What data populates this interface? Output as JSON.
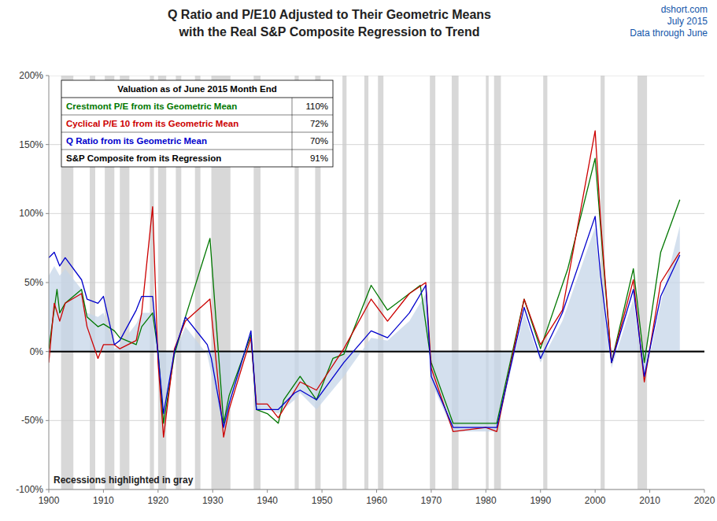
{
  "chart_data": {
    "type": "line",
    "title": "Q Ratio and P/E10 Adjusted to Their Geometric Means",
    "subtitle": "with the Real S&P Composite Regression to Trend",
    "credits": [
      "dshort.com",
      "July 2015",
      "Data through June"
    ],
    "note": "Recessions highlighted in gray",
    "legend_title": "Valuation as of June 2015  Month End",
    "legend": "upper left",
    "grid": true,
    "xlim": [
      1900,
      2020
    ],
    "xticks": [
      1900,
      1910,
      1920,
      1930,
      1940,
      1950,
      1960,
      1970,
      1980,
      1990,
      2000,
      2010,
      2020
    ],
    "ylim": [
      -1.0,
      2.0
    ],
    "yticks": [
      {
        "value": -1.0,
        "label": "-100%"
      },
      {
        "value": -0.5,
        "label": "-50%"
      },
      {
        "value": 0.0,
        "label": "0%"
      },
      {
        "value": 0.5,
        "label": "50%"
      },
      {
        "value": 1.0,
        "label": "100%"
      },
      {
        "value": 1.5,
        "label": "150%"
      },
      {
        "value": 2.0,
        "label": "200%"
      }
    ],
    "recession_bands": [
      [
        1902.25,
        1904.5
      ],
      [
        1907.5,
        1908.5
      ],
      [
        1910.25,
        1912.0
      ],
      [
        1913.0,
        1914.75
      ],
      [
        1918.5,
        1919.25
      ],
      [
        1920.0,
        1921.5
      ],
      [
        1923.25,
        1924.25
      ],
      [
        1926.75,
        1927.75
      ],
      [
        1929.75,
        1933.25
      ],
      [
        1937.5,
        1938.75
      ],
      [
        1945.0,
        1945.75
      ],
      [
        1948.75,
        1949.75
      ],
      [
        1953.75,
        1954.5
      ],
      [
        1957.75,
        1958.5
      ],
      [
        1960.25,
        1961.25
      ],
      [
        1969.75,
        1970.75
      ],
      [
        1973.75,
        1975.0
      ],
      [
        1980.0,
        1980.5
      ],
      [
        1981.5,
        1982.75
      ],
      [
        1990.5,
        1991.25
      ],
      [
        2001.0,
        2001.75
      ],
      [
        2007.75,
        2009.5
      ]
    ],
    "series": [
      {
        "name": "Crestmont P/E from its Geometric Mean",
        "type": "line",
        "color": "#007700",
        "legend_value": "110%",
        "x": [
          1900,
          1901.5,
          1902,
          1903,
          1906,
          1907,
          1909,
          1910,
          1912,
          1913,
          1916,
          1917,
          1919,
          1920,
          1921,
          1923,
          1925,
          1929.5,
          1932,
          1933,
          1937,
          1938,
          1940,
          1942,
          1943,
          1946,
          1949,
          1952,
          1954,
          1959,
          1962,
          1966,
          1968,
          1970,
          1974,
          1980,
          1982,
          1987,
          1990,
          1995,
          2000,
          2001,
          2003,
          2007,
          2009,
          2012,
          2015.5
        ],
        "values": [
          0.02,
          0.45,
          0.28,
          0.35,
          0.45,
          0.25,
          0.18,
          0.2,
          0.15,
          0.1,
          0.05,
          0.18,
          0.28,
          0.0,
          -0.52,
          -0.02,
          0.25,
          0.82,
          -0.52,
          -0.32,
          0.12,
          -0.42,
          -0.45,
          -0.52,
          -0.35,
          -0.18,
          -0.35,
          -0.05,
          -0.02,
          0.48,
          0.3,
          0.42,
          0.48,
          -0.08,
          -0.52,
          -0.52,
          -0.52,
          0.38,
          0.02,
          0.6,
          1.4,
          0.9,
          -0.08,
          0.6,
          -0.08,
          0.72,
          1.1
        ]
      },
      {
        "name": "Cyclical P/E 10 from its Geometric Mean",
        "type": "line",
        "color": "#cc0000",
        "legend_value": "72%",
        "x": [
          1900,
          1901,
          1902,
          1903,
          1906,
          1907,
          1909,
          1910,
          1912,
          1913,
          1916,
          1917,
          1919,
          1920,
          1921,
          1923,
          1925,
          1929.5,
          1932,
          1933,
          1937,
          1938,
          1940,
          1942,
          1946,
          1949,
          1954,
          1959,
          1962,
          1966,
          1969,
          1970,
          1974,
          1980,
          1982,
          1987,
          1990,
          1994,
          2000,
          2001,
          2003,
          2007,
          2009,
          2012,
          2015.5
        ],
        "values": [
          -0.08,
          0.35,
          0.22,
          0.35,
          0.42,
          0.18,
          -0.05,
          0.05,
          0.05,
          0.02,
          0.08,
          0.28,
          1.05,
          -0.08,
          -0.62,
          0.02,
          0.22,
          0.38,
          -0.62,
          -0.42,
          0.1,
          -0.38,
          -0.38,
          -0.48,
          -0.22,
          -0.28,
          0.02,
          0.38,
          0.22,
          0.42,
          0.5,
          -0.12,
          -0.58,
          -0.55,
          -0.58,
          0.38,
          0.05,
          0.3,
          1.6,
          0.95,
          -0.08,
          0.52,
          -0.22,
          0.5,
          0.72
        ]
      },
      {
        "name": "Q Ratio from its Geometric Mean",
        "type": "line",
        "color": "#0000cc",
        "legend_value": "70%",
        "x": [
          1900,
          1901,
          1902,
          1903,
          1906,
          1907,
          1909,
          1910,
          1912,
          1913,
          1916,
          1917,
          1919,
          1920,
          1921,
          1923,
          1925,
          1929,
          1929.75,
          1932,
          1933,
          1937,
          1938,
          1940,
          1942,
          1945,
          1946,
          1949,
          1954,
          1959,
          1962,
          1966,
          1969,
          1970,
          1974,
          1980,
          1982,
          1987,
          1990,
          1994,
          2000,
          2001,
          2003,
          2007,
          2009,
          2012,
          2015.5
        ],
        "values": [
          0.68,
          0.72,
          0.62,
          0.68,
          0.52,
          0.38,
          0.35,
          0.4,
          0.05,
          0.08,
          0.3,
          0.4,
          0.4,
          -0.02,
          -0.45,
          0.0,
          0.25,
          0.05,
          -0.05,
          -0.55,
          -0.38,
          0.15,
          -0.42,
          -0.42,
          -0.42,
          -0.3,
          -0.28,
          -0.35,
          -0.08,
          0.15,
          0.1,
          0.28,
          0.48,
          -0.18,
          -0.55,
          -0.55,
          -0.55,
          0.32,
          -0.05,
          0.28,
          0.98,
          0.55,
          -0.08,
          0.45,
          -0.18,
          0.4,
          0.7
        ]
      },
      {
        "name": "S&P Composite from its Regression",
        "type": "area",
        "color": "#c5d5e8",
        "legend_value": "91%",
        "x": [
          1900,
          1901,
          1902,
          1903,
          1906,
          1907,
          1909,
          1910,
          1912,
          1913,
          1916,
          1917,
          1919,
          1920,
          1921,
          1923,
          1925,
          1929,
          1932,
          1933,
          1937,
          1938,
          1940,
          1942,
          1945,
          1946,
          1949,
          1954,
          1959,
          1962,
          1966,
          1969,
          1970,
          1974,
          1980,
          1982,
          1987,
          1990,
          1994,
          2000,
          2001,
          2003,
          2007,
          2009,
          2012,
          2015.5
        ],
        "values": [
          0.55,
          0.62,
          0.55,
          0.6,
          0.45,
          0.28,
          0.25,
          0.28,
          0.02,
          0.05,
          0.2,
          0.28,
          0.28,
          -0.02,
          -0.48,
          -0.02,
          0.18,
          -0.02,
          -0.58,
          -0.38,
          0.08,
          -0.42,
          -0.42,
          -0.45,
          -0.35,
          -0.3,
          -0.42,
          -0.18,
          0.1,
          0.08,
          0.22,
          0.42,
          -0.22,
          -0.58,
          -0.58,
          -0.58,
          0.28,
          -0.08,
          0.22,
          0.9,
          0.5,
          -0.12,
          0.38,
          -0.22,
          0.35,
          0.91
        ]
      }
    ]
  }
}
